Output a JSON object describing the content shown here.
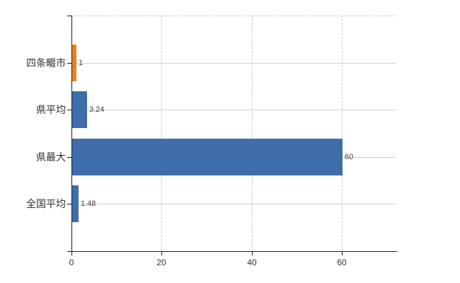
{
  "chart_data": {
    "type": "bar",
    "orientation": "horizontal",
    "title": "",
    "xlabel": "",
    "ylabel": "",
    "categories": [
      "四条畷市",
      "県平均",
      "県最大",
      "全国平均"
    ],
    "values": [
      1,
      3.24,
      60,
      1.48
    ],
    "value_labels": [
      "1",
      "3.24",
      "60",
      "1.48"
    ],
    "bar_colors": [
      "#e8821e",
      "#3e6da9",
      "#3e6da9",
      "#3e6da9"
    ],
    "x_ticks": [
      0,
      20,
      40,
      60
    ],
    "x_tick_labels": [
      "0",
      "20",
      "40",
      "60"
    ],
    "xlim": [
      0,
      72.1
    ],
    "grid": true,
    "grid_vertical_style": "dashed",
    "grid_horizontal_style": "solid",
    "legend": false,
    "colors": {
      "bar_blue": "#3e6da9",
      "bar_orange": "#e8821e",
      "axis": "#1a1a1a",
      "grid_vertical": "#cbcbcb",
      "grid_horizontal": "#cdd5c9",
      "text": "#333333"
    }
  }
}
